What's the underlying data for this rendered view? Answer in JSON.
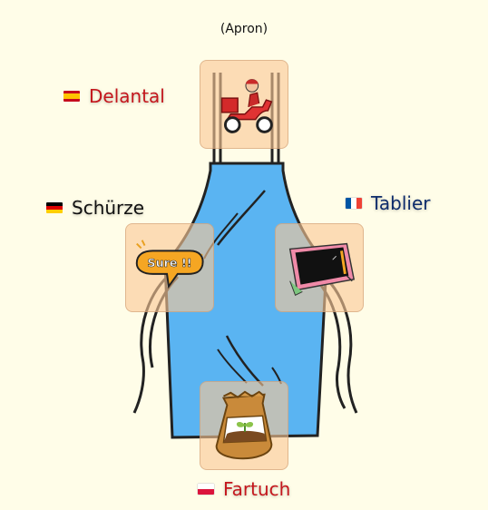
{
  "title": "(Apron)",
  "words": [
    {
      "id": "es",
      "flag": "flag-es-icon",
      "text": "Delantal",
      "color": "#c4161c"
    },
    {
      "id": "de",
      "flag": "flag-de-icon",
      "text": "Schürze",
      "color": "#111111"
    },
    {
      "id": "fr",
      "flag": "flag-fr-icon",
      "text": "Tablier",
      "color": "#0d2b6b"
    },
    {
      "id": "pl",
      "flag": "flag-pl-icon",
      "text": "Fartuch",
      "color": "#c4161c"
    }
  ],
  "tiles": {
    "es": {
      "icon": "delivery-scooter-icon"
    },
    "de": {
      "icon": "sure-speech-bubble-icon",
      "text": "Sure !!"
    },
    "fr": {
      "icon": "drawing-tablet-icon"
    },
    "pl": {
      "icon": "seed-bag-icon"
    }
  },
  "colors": {
    "background": "#fffde8",
    "apron": "#5ab4f2",
    "tile": "#fac896"
  }
}
